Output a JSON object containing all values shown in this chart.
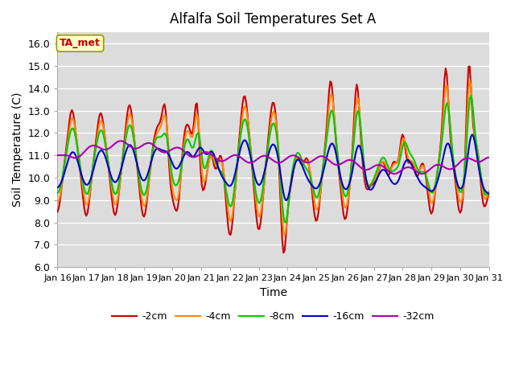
{
  "title": "Alfalfa Soil Temperatures Set A",
  "xlabel": "Time",
  "ylabel": "Soil Temperature (C)",
  "ylim": [
    6.0,
    16.5
  ],
  "yticks": [
    6.0,
    7.0,
    8.0,
    9.0,
    10.0,
    11.0,
    12.0,
    13.0,
    14.0,
    15.0,
    16.0
  ],
  "bg_color": "#dcdcdc",
  "fig_color": "#ffffff",
  "annotation_text": "TA_met",
  "annotation_color": "#cc0000",
  "annotation_bg": "#ffffcc",
  "annotation_edge": "#999900",
  "series_colors": [
    "#cc0000",
    "#ff8800",
    "#00cc00",
    "#0000cc",
    "#aa00aa"
  ],
  "series_labels": [
    "-2cm",
    "-4cm",
    "-8cm",
    "-16cm",
    "-32cm"
  ],
  "line_width": 1.5,
  "x_tick_labels": [
    "Jan 16",
    "Jan 17",
    "Jan 18",
    "Jan 19",
    "Jan 20",
    "Jan 21",
    "Jan 22",
    "Jan 23",
    "Jan 24",
    "Jan 25",
    "Jan 26",
    "Jan 27",
    "Jan 28",
    "Jan 29",
    "Jan 30",
    "Jan 31"
  ]
}
